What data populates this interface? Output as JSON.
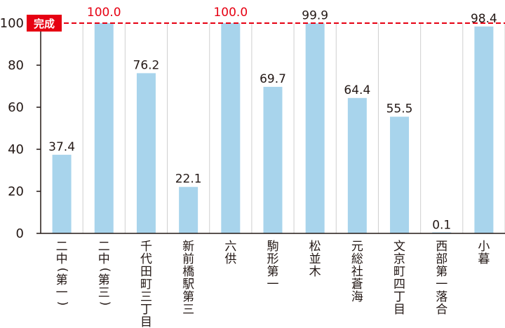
{
  "chart_data": {
    "type": "bar",
    "categories": [
      "二中(第一)",
      "二中(第三)",
      "千代田町三丁目",
      "新前橋駅第三",
      "六供",
      "駒形第一",
      "松並木",
      "元総社蒼海",
      "文京町四丁目",
      "西部第一落合",
      "小暮"
    ],
    "values": [
      37.4,
      100.0,
      76.2,
      22.1,
      100.0,
      69.7,
      99.9,
      64.4,
      55.5,
      0.1,
      98.4
    ],
    "value_labels": [
      "37.4",
      "100.0",
      "76.2",
      "22.1",
      "100.0",
      "69.7",
      "99.9",
      "64.4",
      "55.5",
      "0.1",
      "98.4"
    ],
    "y_ticks": [
      "0",
      "20",
      "40",
      "60",
      "80",
      "100"
    ],
    "ylim": [
      0,
      100
    ],
    "reference_line": {
      "value": 100,
      "label": "完成"
    },
    "grid": "vertical-separators",
    "colors": {
      "bar": "#a8d4ec",
      "reference": "#e60012",
      "highlight_label": "#e60012",
      "text": "#231815",
      "grid": "#cfcfcf"
    }
  }
}
